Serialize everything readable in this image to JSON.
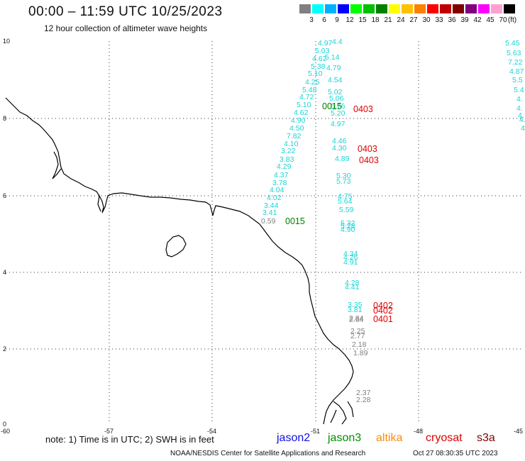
{
  "header": {
    "title": "00:00 – 11:59 UTC 10/25/2023",
    "subtitle": "12 hour collection of altimeter wave heights"
  },
  "legend": {
    "unit": "(ft)",
    "colors": [
      "#808080",
      "#00ffff",
      "#00b0ff",
      "#0000ff",
      "#00ff00",
      "#00c000",
      "#008000",
      "#ffff00",
      "#ffc000",
      "#ff8000",
      "#ff0000",
      "#c00000",
      "#800000",
      "#800080",
      "#ff00ff",
      "#ffa0d0",
      "#000000"
    ],
    "labels": [
      "3",
      "6",
      "9",
      "12",
      "15",
      "18",
      "21",
      "24",
      "27",
      "30",
      "33",
      "36",
      "39",
      "42",
      "45",
      "70"
    ]
  },
  "map": {
    "x_ticks": [
      "-60",
      "-57",
      "-54",
      "-51",
      "-48",
      "-45"
    ],
    "y_ticks": [
      "0",
      "2",
      "4",
      "6",
      "8",
      "10"
    ],
    "track_colors": {
      "cyan": "#19d3d8",
      "gray": "#808080",
      "green": "#008000",
      "red": "#e00000"
    },
    "tracks": [
      {
        "values": [
          "4.97",
          "4.4",
          "5.03",
          "5.14",
          "4.62",
          "5.38",
          "4.79",
          "5.10",
          "4.25",
          "4.54",
          "5.48",
          "5.02",
          "4.72",
          "5.06",
          "5.10",
          "5.76",
          "5.20",
          "4.62",
          "4.90",
          "4.97",
          "4.50",
          "7.82",
          "4.10",
          "4.46",
          "3.22",
          "4.30",
          "3.83",
          "4.89",
          "4.29",
          "4.37",
          "5.30",
          "3.78",
          "5.73",
          "4.04",
          "4.02",
          "4.75",
          "3.44",
          "5.64",
          "3.41",
          "5.59",
          "0.59"
        ]
      },
      {
        "values": [
          "5.32",
          "5.28",
          "4.90",
          "4.34",
          "4.26",
          "4.91",
          "4.28",
          "4.41",
          "3.35",
          "3.81",
          "2.84",
          "2.64",
          "2.25",
          "2.77",
          "2.18",
          "1.89",
          "2.37",
          "2.28"
        ]
      },
      {
        "values": [
          "5.45",
          "5.63",
          "7.22",
          "4.87",
          "5.5",
          "5.4",
          "4.",
          "4.",
          "4.",
          "4.",
          "4."
        ]
      }
    ],
    "passes": [
      "0015",
      "0403",
      "0403",
      "0403",
      "0015",
      "0402",
      "0402",
      "0401"
    ]
  },
  "footer": {
    "note": "note: 1) Time is in UTC; 2) SWH is in feet",
    "satellites": [
      {
        "name": "jason2",
        "color": "#1010e0"
      },
      {
        "name": "jason3",
        "color": "#009000"
      },
      {
        "name": "altika",
        "color": "#ff8c00"
      },
      {
        "name": "cryosat",
        "color": "#e00000"
      },
      {
        "name": "s3a",
        "color": "#800000"
      }
    ],
    "credit": "NOAA/NESDIS Center for Satellite Applications and Research",
    "timestamp": "Oct 27 08:30:35 UTC 2023"
  }
}
